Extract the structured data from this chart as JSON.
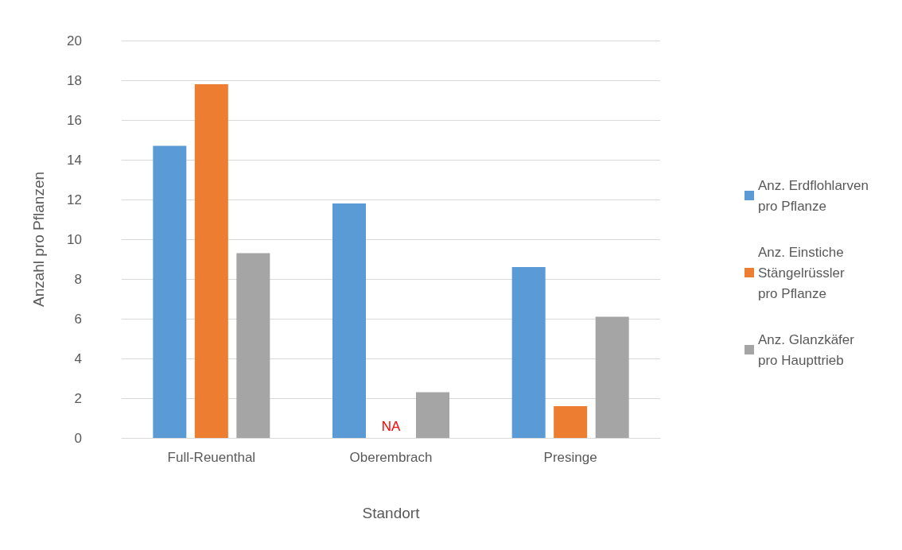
{
  "chart_data": {
    "type": "bar",
    "xlabel": "Standort",
    "ylabel": "Anzahl pro Pflanzen",
    "categories": [
      "Full-Reuenthal",
      "Oberembrach",
      "Presinge"
    ],
    "series": [
      {
        "name": "Anz. Erdflohlarven pro Pflanze",
        "color": "#5b9bd5",
        "values": [
          14.7,
          11.8,
          8.6
        ]
      },
      {
        "name": "Anz. Einstiche Stängelrüssler pro Pflanze",
        "color": "#ed7d31",
        "values": [
          17.8,
          null,
          1.6
        ]
      },
      {
        "name": "Anz. Glanzkäfer pro Haupttrieb",
        "color": "#a5a5a5",
        "values": [
          9.3,
          2.3,
          6.1
        ]
      }
    ],
    "annotations": [
      "NA"
    ],
    "ylim": [
      0,
      20
    ],
    "yticks": [
      0,
      2,
      4,
      6,
      8,
      10,
      12,
      14,
      16,
      18,
      20
    ],
    "grid": "y",
    "legend": "right"
  }
}
